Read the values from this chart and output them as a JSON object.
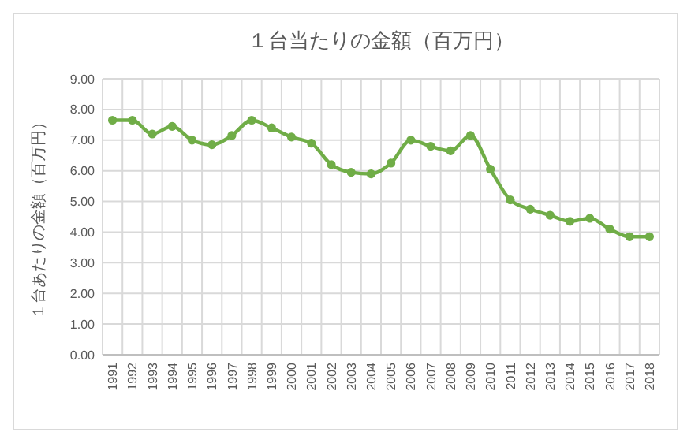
{
  "chart_data": {
    "type": "line",
    "title": "１台当たりの金額（百万円）",
    "ylabel": "１台あたりの金額（百万円）",
    "categories": [
      "1991",
      "1992",
      "1993",
      "1994",
      "1995",
      "1996",
      "1997",
      "1998",
      "1999",
      "2000",
      "2001",
      "2002",
      "2003",
      "2004",
      "2005",
      "2006",
      "2007",
      "2008",
      "2009",
      "2010",
      "2011",
      "2012",
      "2013",
      "2014",
      "2015",
      "2016",
      "2017",
      "2018"
    ],
    "series": [
      {
        "color": "#70ad47",
        "values": [
          7.65,
          7.65,
          7.2,
          7.45,
          7.0,
          6.85,
          7.15,
          7.65,
          7.4,
          7.1,
          6.9,
          6.2,
          5.95,
          5.9,
          6.25,
          7.0,
          6.8,
          6.65,
          7.15,
          6.05,
          5.05,
          4.75,
          4.55,
          4.35,
          4.45,
          4.1,
          3.85,
          3.85
        ]
      }
    ],
    "ylim": [
      0,
      9
    ],
    "yticks": [
      {
        "value": 0,
        "label": "0.00"
      },
      {
        "value": 1,
        "label": "1.00"
      },
      {
        "value": 2,
        "label": "2.00"
      },
      {
        "value": 3,
        "label": "3.00"
      },
      {
        "value": 4,
        "label": "4.00"
      },
      {
        "value": 5,
        "label": "5.00"
      },
      {
        "value": 6,
        "label": "6.00"
      },
      {
        "value": 7,
        "label": "7.00"
      },
      {
        "value": 8,
        "label": "8.00"
      },
      {
        "value": 9,
        "label": "9.00"
      }
    ],
    "grid": true,
    "marker": "circle",
    "line_style": "solid"
  }
}
